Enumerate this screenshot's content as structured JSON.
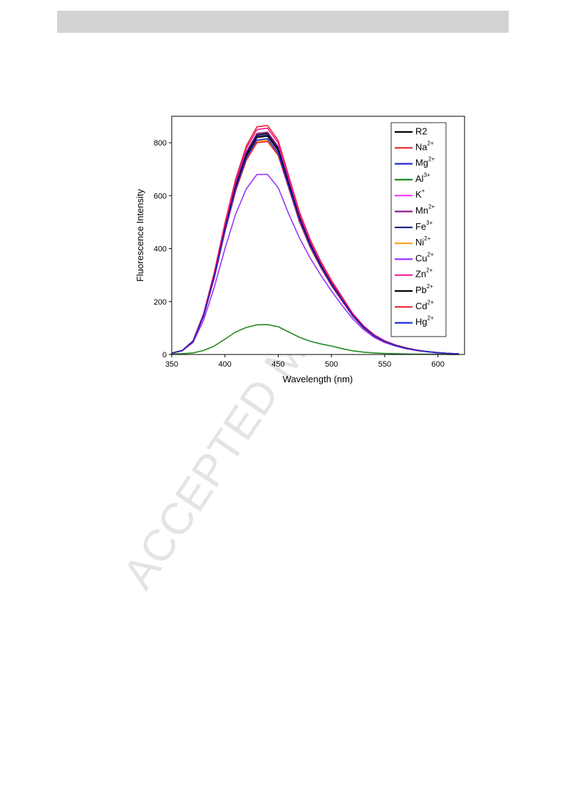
{
  "watermark": "ACCEPTED MANUSCRIPT",
  "chart_data": {
    "type": "line",
    "xlabel": "Wavelength (nm)",
    "ylabel": "Fluorescence Intensity",
    "xlim": [
      350,
      625
    ],
    "ylim": [
      0,
      900
    ],
    "xticks": [
      350,
      400,
      450,
      500,
      550,
      600
    ],
    "yticks": [
      0,
      200,
      400,
      600,
      800
    ],
    "legend": "upper right",
    "x": [
      350,
      360,
      370,
      380,
      390,
      400,
      410,
      420,
      430,
      440,
      450,
      460,
      470,
      480,
      490,
      500,
      510,
      520,
      530,
      540,
      550,
      560,
      570,
      580,
      590,
      600,
      610,
      620
    ],
    "series": [
      {
        "name": "R2",
        "color": "#000000",
        "values": [
          5,
          15,
          50,
          150,
          300,
          480,
          640,
          760,
          830,
          835,
          780,
          650,
          520,
          420,
          340,
          270,
          210,
          150,
          105,
          72,
          50,
          35,
          24,
          16,
          11,
          7,
          4,
          2
        ]
      },
      {
        "name": "Na2+",
        "color": "#e8232a",
        "values": [
          5,
          16,
          52,
          155,
          311,
          497,
          663,
          787,
          860,
          865,
          808,
          673,
          539,
          435,
          352,
          280,
          218,
          155,
          109,
          75,
          52,
          36,
          25,
          17,
          11,
          7,
          4,
          2
        ]
      },
      {
        "name": "Mg2+",
        "color": "#1f2bd6",
        "values": [
          5,
          15,
          49,
          148,
          296,
          474,
          632,
          751,
          820,
          825,
          771,
          642,
          514,
          415,
          336,
          267,
          207,
          148,
          104,
          71,
          49,
          35,
          24,
          16,
          11,
          7,
          4,
          2
        ]
      },
      {
        "name": "Al3+",
        "color": "#1f8a1f",
        "values": [
          2,
          3,
          6,
          15,
          32,
          58,
          85,
          102,
          112,
          113,
          105,
          85,
          65,
          50,
          40,
          32,
          22,
          14,
          9,
          6,
          4,
          3,
          2,
          1,
          1,
          1,
          0,
          0
        ]
      },
      {
        "name": "K+",
        "color": "#ff33ff",
        "values": [
          5,
          15,
          49,
          146,
          293,
          468,
          625,
          742,
          810,
          815,
          761,
          634,
          508,
          410,
          332,
          264,
          205,
          146,
          102,
          70,
          49,
          34,
          23,
          16,
          11,
          7,
          4,
          2
        ]
      },
      {
        "name": "Mn2+",
        "color": "#8b1a8b",
        "values": [
          5,
          15,
          50,
          151,
          302,
          483,
          644,
          765,
          835,
          840,
          785,
          654,
          523,
          423,
          342,
          272,
          211,
          151,
          106,
          72,
          50,
          35,
          24,
          16,
          11,
          7,
          4,
          2
        ]
      },
      {
        "name": "Fe3+",
        "color": "#1a1a80",
        "values": [
          5,
          15,
          50,
          149,
          298,
          477,
          636,
          755,
          825,
          830,
          775,
          646,
          517,
          417,
          338,
          268,
          209,
          149,
          104,
          72,
          50,
          35,
          24,
          16,
          11,
          7,
          4,
          2
        ]
      },
      {
        "name": "Ni2+",
        "color": "#ffa020",
        "values": [
          5,
          15,
          49,
          146,
          291,
          466,
          621,
          737,
          805,
          810,
          757,
          631,
          504,
          407,
          330,
          262,
          204,
          146,
          102,
          70,
          49,
          34,
          23,
          16,
          11,
          7,
          4,
          2
        ]
      },
      {
        "name": "Cu2+",
        "color": "#9933ff",
        "values": [
          5,
          14,
          45,
          130,
          255,
          400,
          530,
          625,
          680,
          680,
          630,
          530,
          440,
          365,
          300,
          240,
          185,
          135,
          95,
          65,
          45,
          32,
          22,
          15,
          10,
          6,
          4,
          2
        ]
      },
      {
        "name": "Zn2+",
        "color": "#ff1493",
        "values": [
          5,
          15,
          51,
          154,
          307,
          492,
          655,
          778,
          850,
          855,
          799,
          666,
          532,
          430,
          348,
          276,
          215,
          154,
          108,
          74,
          51,
          36,
          25,
          16,
          11,
          7,
          4,
          2
        ]
      },
      {
        "name": "Pb2+",
        "color": "#000000",
        "values": [
          5,
          15,
          49,
          148,
          296,
          474,
          632,
          751,
          820,
          825,
          771,
          642,
          514,
          415,
          336,
          267,
          207,
          148,
          104,
          71,
          49,
          35,
          24,
          16,
          11,
          7,
          4,
          2
        ]
      },
      {
        "name": "Cd2+",
        "color": "#e8232a",
        "values": [
          5,
          14,
          48,
          145,
          289,
          463,
          617,
          733,
          800,
          805,
          752,
          627,
          501,
          405,
          328,
          260,
          202,
          145,
          101,
          69,
          48,
          34,
          23,
          15,
          11,
          7,
          4,
          2
        ]
      },
      {
        "name": "Hg2+",
        "color": "#1f2bd6",
        "values": [
          5,
          15,
          49,
          146,
          293,
          468,
          625,
          742,
          810,
          815,
          761,
          634,
          508,
          410,
          332,
          264,
          205,
          146,
          102,
          70,
          49,
          34,
          23,
          16,
          11,
          7,
          4,
          2
        ]
      }
    ]
  }
}
